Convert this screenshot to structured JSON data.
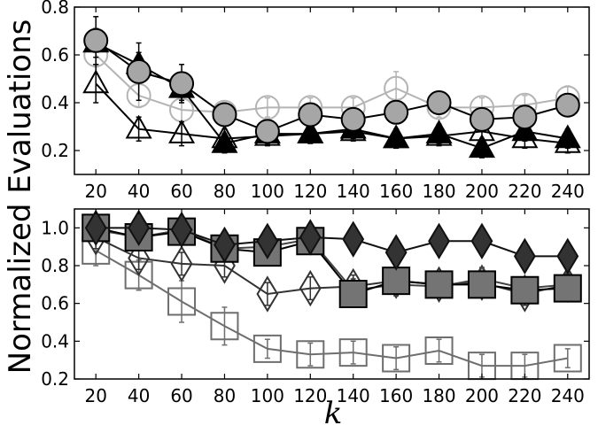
{
  "figure": {
    "ylabel": "Normalized Evaluations",
    "xlabel": "k"
  },
  "chart_data": [
    {
      "type": "line",
      "panel": "top",
      "x": [
        20,
        40,
        60,
        80,
        100,
        120,
        140,
        160,
        180,
        200,
        220,
        240
      ],
      "xticks": [
        "20",
        "40",
        "60",
        "80",
        "100",
        "120",
        "140",
        "160",
        "180",
        "200",
        "220",
        "240"
      ],
      "ylim": [
        0.1,
        0.8
      ],
      "yticks": [
        "0.2",
        "0.4",
        "0.6",
        "0.8"
      ],
      "yticks_values": [
        0.2,
        0.4,
        0.6,
        0.8
      ],
      "grid": false,
      "series": [
        {
          "marker": "circle",
          "fill": "none",
          "color": "#b4b4b4",
          "size": 13,
          "values": [
            0.6,
            0.43,
            0.37,
            0.36,
            0.38,
            0.38,
            0.38,
            0.46,
            0.38,
            0.38,
            0.39,
            0.42
          ],
          "err": [
            0.05,
            0.05,
            0.05,
            0.04,
            0.04,
            0.04,
            0.04,
            0.07,
            0.04,
            0.04,
            0.04,
            0.05
          ]
        },
        {
          "marker": "triangle",
          "fill": "none",
          "color": "#000000",
          "size": 14,
          "values": [
            0.48,
            0.29,
            0.27,
            0.25,
            0.26,
            0.27,
            0.28,
            0.25,
            0.26,
            0.28,
            0.25,
            0.23
          ],
          "err": [
            0.08,
            0.05,
            0.05,
            0.04,
            0.04,
            0.04,
            0.04,
            0.04,
            0.04,
            0.05,
            0.04,
            0.04
          ]
        },
        {
          "marker": "triangle",
          "fill": "#000000",
          "color": "#000000",
          "size": 14,
          "values": [
            0.65,
            0.56,
            0.46,
            0.23,
            0.27,
            0.27,
            0.29,
            0.25,
            0.27,
            0.21,
            0.28,
            0.25
          ],
          "err": [
            0.06,
            0.05,
            0.05,
            0.04,
            0.04,
            0.04,
            0.04,
            0.04,
            0.04,
            0.04,
            0.04,
            0.04
          ]
        },
        {
          "marker": "circle",
          "fill": "#a6a6a6",
          "color": "#000000",
          "size": 13,
          "values": [
            0.66,
            0.53,
            0.48,
            0.35,
            0.28,
            0.35,
            0.33,
            0.36,
            0.4,
            0.33,
            0.34,
            0.39
          ],
          "err": [
            0.1,
            0.12,
            0.08,
            0.04,
            0.04,
            0.04,
            0.04,
            0.04,
            0.04,
            0.04,
            0.04,
            0.04
          ]
        }
      ]
    },
    {
      "type": "line",
      "panel": "bottom",
      "x": [
        20,
        40,
        60,
        80,
        100,
        120,
        140,
        160,
        180,
        200,
        220,
        240
      ],
      "xticks": [
        "20",
        "40",
        "60",
        "80",
        "100",
        "120",
        "140",
        "160",
        "180",
        "200",
        "220",
        "240"
      ],
      "ylim": [
        0.2,
        1.1
      ],
      "yticks": [
        "0.2",
        "0.4",
        "0.6",
        "0.8",
        "1.0"
      ],
      "yticks_values": [
        0.2,
        0.4,
        0.6,
        0.8,
        1.0
      ],
      "grid": false,
      "series": [
        {
          "marker": "square",
          "fill": "none",
          "color": "#6e6e6e",
          "size": 15,
          "values": [
            0.88,
            0.75,
            0.61,
            0.48,
            0.36,
            0.33,
            0.34,
            0.31,
            0.35,
            0.27,
            0.27,
            0.31
          ],
          "err": [
            0.08,
            0.08,
            0.11,
            0.1,
            0.05,
            0.06,
            0.06,
            0.06,
            0.06,
            0.06,
            0.06,
            0.05
          ]
        },
        {
          "marker": "diamond",
          "fill": "none",
          "color": "#333333",
          "size": 15,
          "values": [
            0.95,
            0.84,
            0.81,
            0.8,
            0.65,
            0.68,
            0.69,
            0.72,
            0.7,
            0.71,
            0.65,
            0.7
          ],
          "err": [
            0.06,
            0.06,
            0.06,
            0.06,
            0.06,
            0.06,
            0.06,
            0.06,
            0.06,
            0.06,
            0.06,
            0.06
          ]
        },
        {
          "marker": "triangle",
          "fill": "#ababab",
          "color": "#444444",
          "size": 14,
          "values": [
            0.99,
            0.95,
            0.99,
            0.89,
            0.9,
            0.94,
            0.67,
            0.7,
            0.69,
            0.73,
            0.68,
            0.7
          ],
          "err": [
            0.05,
            0.05,
            0.05,
            0.05,
            0.05,
            0.05,
            0.06,
            0.06,
            0.06,
            0.06,
            0.06,
            0.06
          ]
        },
        {
          "marker": "square",
          "fill": "#747474",
          "color": "#000000",
          "size": 15,
          "values": [
            1.0,
            0.95,
            0.98,
            0.89,
            0.87,
            0.93,
            0.65,
            0.72,
            0.7,
            0.7,
            0.67,
            0.68
          ],
          "err": [
            0.05,
            0.06,
            0.05,
            0.07,
            0.07,
            0.05,
            0.06,
            0.06,
            0.06,
            0.06,
            0.06,
            0.06
          ]
        },
        {
          "marker": "diamond",
          "fill": "#333333",
          "color": "#111111",
          "size": 15,
          "values": [
            1.0,
            1.0,
            0.99,
            0.91,
            0.93,
            0.95,
            0.94,
            0.87,
            0.93,
            0.93,
            0.85,
            0.85
          ],
          "err": [
            0.05,
            0.05,
            0.05,
            0.05,
            0.05,
            0.05,
            0.05,
            0.05,
            0.05,
            0.05,
            0.06,
            0.06
          ]
        }
      ]
    }
  ]
}
